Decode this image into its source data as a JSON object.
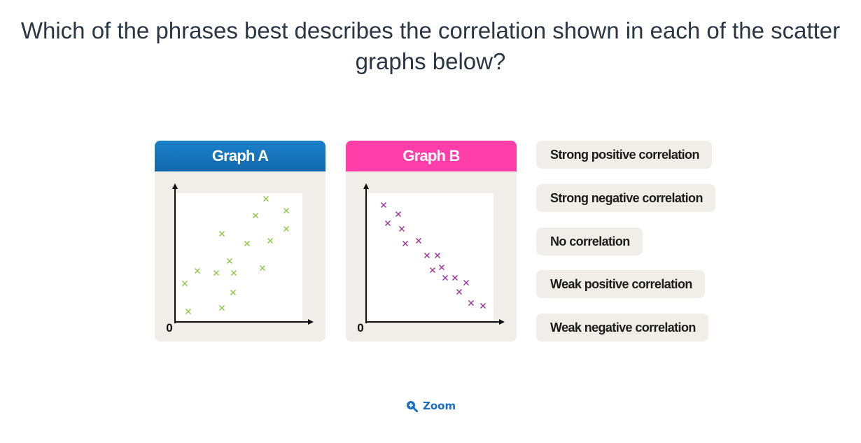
{
  "question": "Which of the phrases best describes the correlation shown in each of the scatter graphs below?",
  "graphs": [
    {
      "title": "Graph A",
      "origin_label": "0",
      "color": "#8cc63f",
      "x": [
        65,
        79.5,
        57.5,
        79.5,
        33.5,
        68,
        51.5,
        39,
        16,
        29.5,
        42,
        62.5,
        7,
        41.5,
        9.5,
        33.5
      ],
      "y": [
        88,
        79.5,
        76,
        66.5,
        63,
        58,
        56,
        43.5,
        36.5,
        35,
        35,
        38.5,
        27.5,
        21,
        7.5,
        10
      ]
    },
    {
      "title": "Graph B",
      "origin_label": "0",
      "color": "#9b2a9b",
      "x": [
        12.5,
        23,
        15.5,
        25.5,
        28,
        37.5,
        43.5,
        51,
        47.5,
        54,
        56.5,
        63.5,
        71.5,
        66.5,
        75,
        83.5
      ],
      "y": [
        83.5,
        77,
        70.5,
        66.5,
        56,
        58,
        47.5,
        47.5,
        37,
        39,
        31.5,
        31.5,
        28,
        21.5,
        13.5,
        11.5
      ]
    }
  ],
  "options": [
    "Strong positive correlation",
    "Strong negative correlation",
    "No correlation",
    "Weak positive correlation",
    "Weak negative correlation"
  ],
  "zoom": "Zoom"
}
